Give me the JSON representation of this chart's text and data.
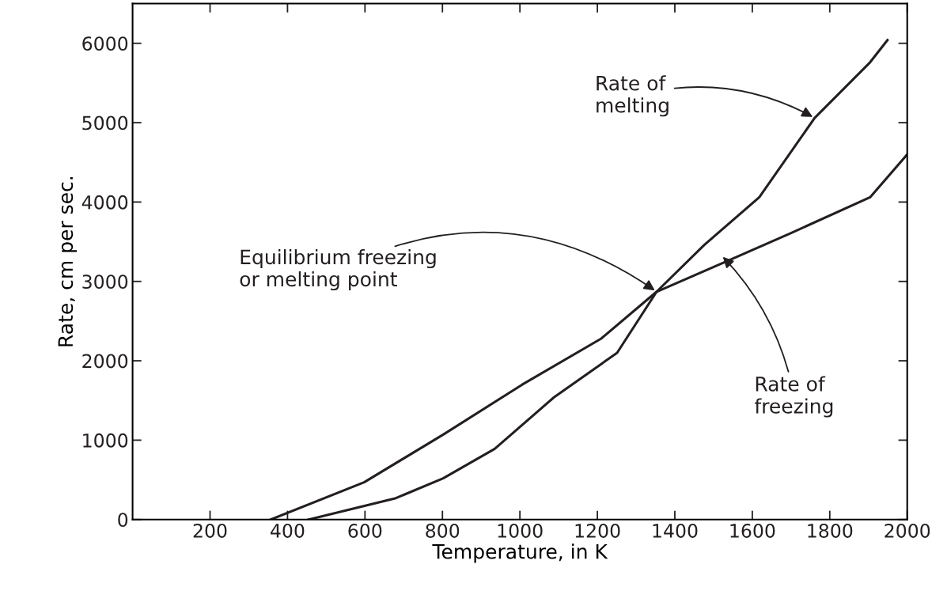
{
  "chart_data": {
    "type": "line",
    "xlabel": "Temperature, in K",
    "ylabel": "Rate, cm per sec.",
    "xlim": [
      0,
      2000
    ],
    "xticks": [
      200,
      400,
      600,
      800,
      1000,
      1200,
      1400,
      1600,
      1800,
      2000
    ],
    "ylim": [
      0,
      6500
    ],
    "yticks": [
      0,
      1000,
      2000,
      3000,
      4000,
      5000,
      6000
    ],
    "grid": false,
    "legend": false,
    "marker": "none",
    "line_style": "solid",
    "series": [
      {
        "color": "#231f20",
        "x": [
          357,
          598,
          802,
          1006,
          1210,
          1353,
          1537,
          1700,
          1904,
          2000
        ],
        "values": [
          0,
          470,
          1070,
          1700,
          2280,
          2870,
          3260,
          3610,
          4060,
          4600
        ]
      },
      {
        "color": "#231f20",
        "x": [
          455,
          680,
          802,
          935,
          1088,
          1251,
          1353,
          1476,
          1618,
          1761,
          1904,
          1949
        ],
        "values": [
          0,
          270,
          520,
          890,
          1540,
          2100,
          2870,
          3460,
          4060,
          5060,
          5760,
          6040
        ]
      }
    ],
    "annotations": [
      {
        "text": "Equilibrium freezing\nor melting point",
        "x": 1353,
        "y": 2870
      },
      {
        "text": "Rate of\nmelting",
        "x": 1761,
        "y": 5060
      },
      {
        "text": "Rate of\nfreezing",
        "x": 1520,
        "y": 3330
      }
    ]
  }
}
